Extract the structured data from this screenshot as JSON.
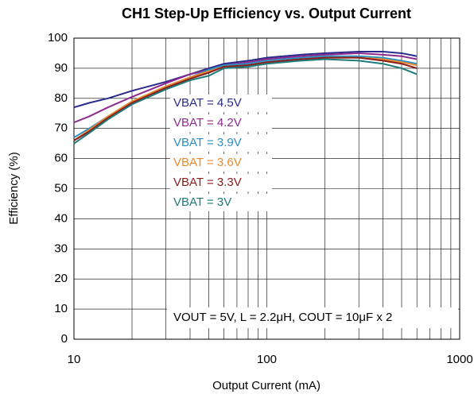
{
  "chart_data": {
    "type": "line",
    "title": "CH1 Step-Up Efficiency vs. Output Current",
    "x_label": "Output Current (mA)",
    "y_label": "Efficiency (%)",
    "annotation": "VOUT = 5V, L = 2.2μH, COUT = 10μF x 2",
    "x": [
      10,
      12,
      15,
      20,
      30,
      40,
      50,
      60,
      80,
      100,
      150,
      200,
      300,
      400,
      500,
      600
    ],
    "series": [
      {
        "name": "VBAT = 4.5V",
        "color": "#2a2a8a",
        "values": [
          77,
          78.5,
          80,
          82.5,
          85.5,
          88,
          90,
          91.5,
          92.5,
          93.5,
          94.5,
          95,
          95.5,
          95.5,
          95,
          94
        ]
      },
      {
        "name": "VBAT = 4.2V",
        "color": "#8e2a8e",
        "values": [
          72,
          74,
          77,
          80.5,
          85,
          88,
          89.5,
          91,
          92,
          93,
          94,
          94.5,
          95,
          94.5,
          94,
          93
        ]
      },
      {
        "name": "VBAT = 3.9V",
        "color": "#2b90c4",
        "values": [
          67,
          70,
          74,
          79,
          84,
          87,
          89.5,
          91,
          91.5,
          92.5,
          93.5,
          94,
          94,
          93.5,
          92.5,
          91.5
        ]
      },
      {
        "name": "VBAT = 3.6V",
        "color": "#ea8a2c",
        "values": [
          66,
          69.5,
          74,
          79,
          84,
          87,
          89,
          90.5,
          91,
          92,
          93,
          93.5,
          93.5,
          93,
          92,
          91
        ]
      },
      {
        "name": "VBAT = 3.3V",
        "color": "#8b1c1c",
        "values": [
          66,
          69,
          73.5,
          78.5,
          83.5,
          86.5,
          88.5,
          90.5,
          91,
          92,
          93,
          93.5,
          93.5,
          92.5,
          91.5,
          90
        ]
      },
      {
        "name": "VBAT = 3V",
        "color": "#1f7a7a",
        "values": [
          65,
          68.5,
          73,
          78,
          83,
          86,
          87.5,
          90,
          90.5,
          91.5,
          92.5,
          93,
          92.5,
          91.5,
          90,
          88
        ]
      }
    ],
    "xlim": [
      10,
      1000
    ],
    "xticks": [
      10,
      100,
      1000
    ],
    "x_scale": "log",
    "ylim": [
      0,
      100
    ],
    "yticks": [
      0,
      10,
      20,
      30,
      40,
      50,
      60,
      70,
      80,
      90,
      100
    ],
    "grid": true
  }
}
